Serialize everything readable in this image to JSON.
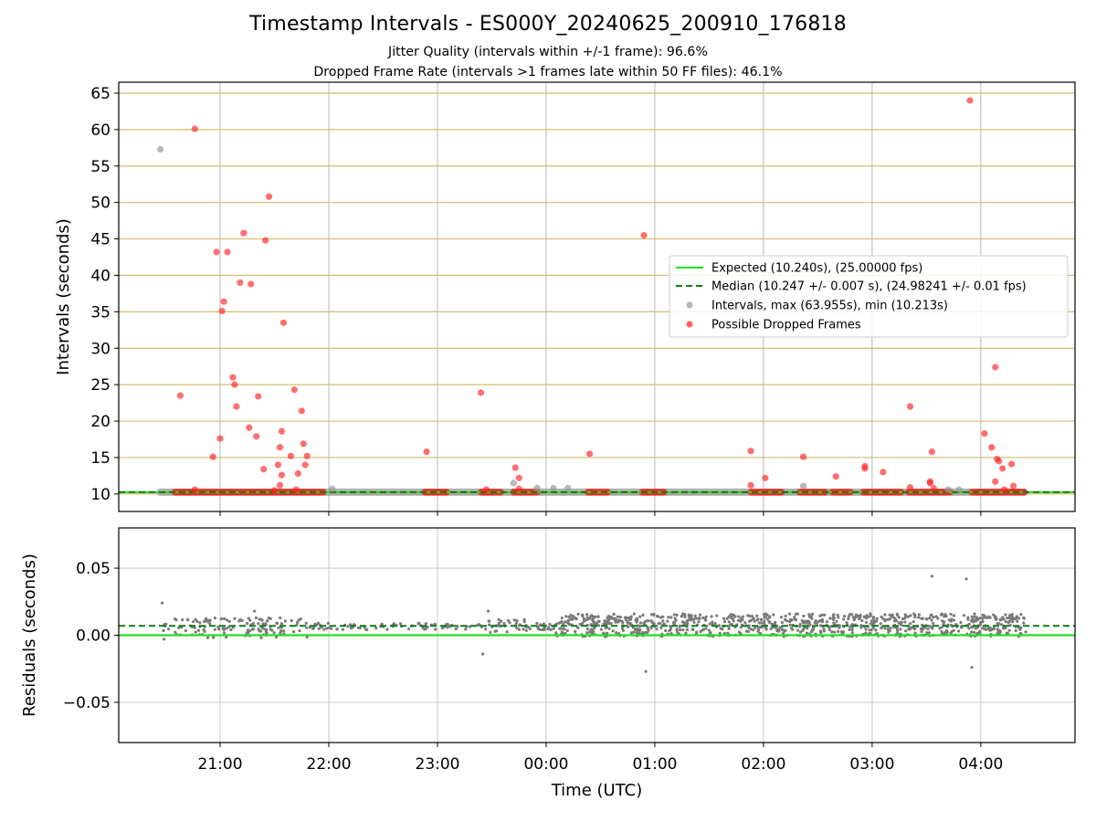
{
  "chart_data": [
    {
      "type": "scatter",
      "title": "Timestamp Intervals - ES000Y_20240625_200910_176818",
      "subtitle_lines": [
        "Jitter Quality (intervals within +/-1 frame): 96.6%",
        "Dropped Frame Rate (intervals >1 frames late within 50 FF files): 46.1%"
      ],
      "xlabel": "",
      "ylabel": "Intervals (seconds)",
      "x_axis": "time (UTC)",
      "xlim": [
        "20:04",
        "04:52"
      ],
      "ylim": [
        7.6,
        66.5
      ],
      "yticks": [
        10,
        15,
        20,
        25,
        30,
        35,
        40,
        45,
        50,
        55,
        60,
        65
      ],
      "xticks": [
        "21:00",
        "22:00",
        "23:00",
        "00:00",
        "01:00",
        "02:00",
        "03:00",
        "04:00"
      ],
      "grid": true,
      "horizontal_guides": "goldenrod at every y tick",
      "legend_position": "center-right",
      "series": [
        {
          "name": "Expected (10.240s), (25.00000 fps)",
          "kind": "hline",
          "y": 10.24,
          "color": "#22e022"
        },
        {
          "name": "Median (10.247 +/- 0.007 s), (24.98241 +/- 0.01 fps)",
          "kind": "hline-dashed",
          "y": 10.247,
          "color": "#127a12"
        },
        {
          "name": "Intervals, max (63.955s), min (10.213s)",
          "kind": "scatter",
          "color": "#999999",
          "baseline_segments": [
            [
              "20:27",
              "04:24"
            ]
          ],
          "points": [
            {
              "t": "20:27",
              "y": 57.3
            },
            {
              "t": "22:02",
              "y": 10.7
            },
            {
              "t": "23:42",
              "y": 11.5
            },
            {
              "t": "23:55",
              "y": 10.8
            },
            {
              "t": "00:04",
              "y": 10.8
            },
            {
              "t": "00:12",
              "y": 10.8
            },
            {
              "t": "02:22",
              "y": 11.1
            },
            {
              "t": "03:42",
              "y": 10.6
            },
            {
              "t": "03:48",
              "y": 10.6
            }
          ]
        },
        {
          "name": "Possible Dropped Frames",
          "kind": "scatter",
          "color": "#ff2222",
          "baseline_segments": [
            [
              "20:35",
              "21:57"
            ],
            [
              "22:53",
              "23:05"
            ],
            [
              "23:24",
              "23:35"
            ],
            [
              "23:42",
              "23:55"
            ],
            [
              "00:23",
              "00:34"
            ],
            [
              "00:53",
              "01:05"
            ],
            [
              "01:53",
              "02:10"
            ],
            [
              "02:20",
              "02:34"
            ],
            [
              "02:38",
              "02:48"
            ],
            [
              "02:55",
              "03:16"
            ],
            [
              "03:20",
              "03:43"
            ],
            [
              "03:55",
              "04:24"
            ]
          ],
          "points": [
            {
              "t": "20:38",
              "y": 23.5
            },
            {
              "t": "20:46",
              "y": 60.1
            },
            {
              "t": "20:46",
              "y": 10.6
            },
            {
              "t": "20:56",
              "y": 15.1
            },
            {
              "t": "20:58",
              "y": 43.2
            },
            {
              "t": "21:00",
              "y": 17.6
            },
            {
              "t": "21:01",
              "y": 35.1
            },
            {
              "t": "21:02",
              "y": 36.4
            },
            {
              "t": "21:04",
              "y": 43.2
            },
            {
              "t": "21:07",
              "y": 26.0
            },
            {
              "t": "21:08",
              "y": 25.0
            },
            {
              "t": "21:09",
              "y": 22.0
            },
            {
              "t": "21:11",
              "y": 39.0
            },
            {
              "t": "21:13",
              "y": 45.8
            },
            {
              "t": "21:16",
              "y": 19.1
            },
            {
              "t": "21:17",
              "y": 38.8
            },
            {
              "t": "21:20",
              "y": 17.9
            },
            {
              "t": "21:21",
              "y": 23.4
            },
            {
              "t": "21:24",
              "y": 13.4
            },
            {
              "t": "21:25",
              "y": 44.8
            },
            {
              "t": "21:27",
              "y": 50.8
            },
            {
              "t": "21:30",
              "y": 10.5
            },
            {
              "t": "21:32",
              "y": 14.0
            },
            {
              "t": "21:33",
              "y": 16.4
            },
            {
              "t": "21:33",
              "y": 11.2
            },
            {
              "t": "21:34",
              "y": 12.6
            },
            {
              "t": "21:34",
              "y": 18.6
            },
            {
              "t": "21:35",
              "y": 33.5
            },
            {
              "t": "21:39",
              "y": 15.2
            },
            {
              "t": "21:41",
              "y": 24.3
            },
            {
              "t": "21:42",
              "y": 10.6
            },
            {
              "t": "21:43",
              "y": 12.8
            },
            {
              "t": "21:45",
              "y": 21.4
            },
            {
              "t": "21:46",
              "y": 16.9
            },
            {
              "t": "21:47",
              "y": 14.0
            },
            {
              "t": "21:48",
              "y": 15.2
            },
            {
              "t": "22:54",
              "y": 15.8
            },
            {
              "t": "23:24",
              "y": 23.9
            },
            {
              "t": "23:27",
              "y": 10.6
            },
            {
              "t": "23:43",
              "y": 13.6
            },
            {
              "t": "23:45",
              "y": 12.2
            },
            {
              "t": "23:45",
              "y": 10.7
            },
            {
              "t": "00:24",
              "y": 15.5
            },
            {
              "t": "00:54",
              "y": 45.5
            },
            {
              "t": "01:53",
              "y": 15.9
            },
            {
              "t": "01:53",
              "y": 11.2
            },
            {
              "t": "02:01",
              "y": 12.2
            },
            {
              "t": "02:22",
              "y": 15.1
            },
            {
              "t": "02:40",
              "y": 12.4
            },
            {
              "t": "02:56",
              "y": 13.5
            },
            {
              "t": "02:56",
              "y": 13.8
            },
            {
              "t": "03:06",
              "y": 13.0
            },
            {
              "t": "03:21",
              "y": 22.0
            },
            {
              "t": "03:21",
              "y": 10.9
            },
            {
              "t": "03:32",
              "y": 11.7
            },
            {
              "t": "03:32",
              "y": 11.5
            },
            {
              "t": "03:33",
              "y": 15.8
            },
            {
              "t": "03:34",
              "y": 10.8
            },
            {
              "t": "03:54",
              "y": 64.0
            },
            {
              "t": "04:02",
              "y": 18.3
            },
            {
              "t": "04:06",
              "y": 16.4
            },
            {
              "t": "04:08",
              "y": 27.4
            },
            {
              "t": "04:08",
              "y": 11.7
            },
            {
              "t": "04:09",
              "y": 14.8
            },
            {
              "t": "04:10",
              "y": 14.5
            },
            {
              "t": "04:12",
              "y": 13.5
            },
            {
              "t": "04:13",
              "y": 10.6
            },
            {
              "t": "04:17",
              "y": 14.1
            },
            {
              "t": "04:18",
              "y": 11.1
            }
          ]
        }
      ]
    },
    {
      "type": "scatter",
      "title": "",
      "xlabel": "Time (UTC)",
      "ylabel": "Residuals (seconds)",
      "xlim": [
        "20:04",
        "04:52"
      ],
      "ylim": [
        -0.08,
        0.08
      ],
      "yticks": [
        -0.05,
        0.0,
        0.05
      ],
      "ytick_labels": [
        "−0.05",
        "0.00",
        "0.05"
      ],
      "xticks": [
        "21:00",
        "22:00",
        "23:00",
        "00:00",
        "01:00",
        "02:00",
        "03:00",
        "04:00"
      ],
      "grid": true,
      "series": [
        {
          "name": "",
          "kind": "hline",
          "y": 0.0,
          "color": "#22e022"
        },
        {
          "name": "",
          "kind": "hline-dashed",
          "y": 0.007,
          "color": "#127a12"
        },
        {
          "name": "",
          "kind": "scatter-band",
          "color": "#7a7a7a",
          "segments": [
            {
              "start": "20:28",
              "end": "21:50",
              "count": 130,
              "low": -0.002,
              "high": 0.013
            },
            {
              "start": "21:50",
              "end": "23:25",
              "count": 70,
              "low": 0.004,
              "high": 0.009
            },
            {
              "start": "23:25",
              "end": "23:50",
              "count": 35,
              "low": 0.002,
              "high": 0.012
            },
            {
              "start": "23:50",
              "end": "00:05",
              "count": 20,
              "low": 0.004,
              "high": 0.009
            },
            {
              "start": "00:05",
              "end": "04:25",
              "count": 900,
              "low": -0.001,
              "high": 0.016
            }
          ],
          "outliers": [
            {
              "t": "20:28",
              "y": 0.024
            },
            {
              "t": "20:29",
              "y": -0.003
            },
            {
              "t": "21:19",
              "y": 0.018
            },
            {
              "t": "23:25",
              "y": -0.014
            },
            {
              "t": "23:28",
              "y": 0.018
            },
            {
              "t": "00:55",
              "y": -0.027
            },
            {
              "t": "03:33",
              "y": 0.044
            },
            {
              "t": "03:52",
              "y": 0.042
            },
            {
              "t": "03:55",
              "y": -0.024
            }
          ]
        }
      ]
    }
  ]
}
